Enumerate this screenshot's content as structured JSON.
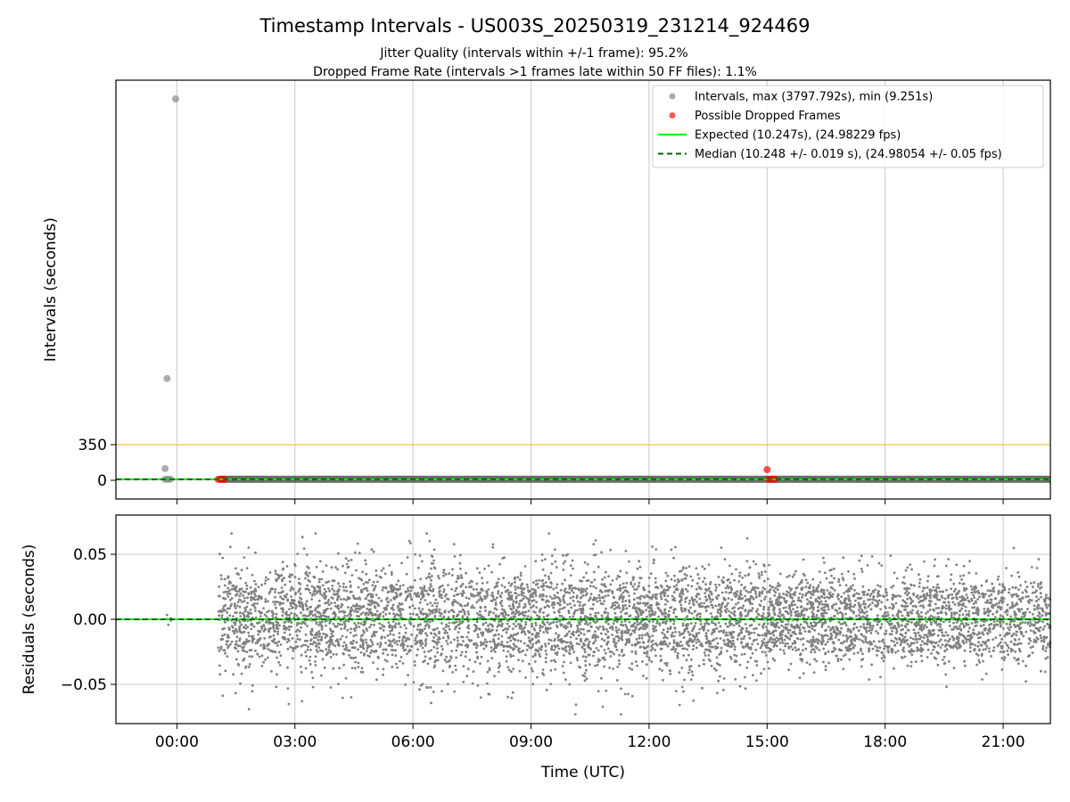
{
  "title": "Timestamp Intervals - US003S_20250319_231214_924469",
  "subtitle_line1": "Jitter Quality (intervals within +/-1 frame): 95.2%",
  "subtitle_line2": "Dropped Frame Rate (intervals >1 frames late within 50 FF files): 1.1%",
  "colors": {
    "intervals": "#808080",
    "dropped": "#ff0000",
    "expected": "#00ee00",
    "median": "#006400",
    "threshold": "#f5c542",
    "grid": "#c8c8c8"
  },
  "chart_data": [
    {
      "type": "scatter",
      "ylabel": "Intervals (seconds)",
      "y_tick_labels": [
        "0",
        "350"
      ],
      "y_ticks": [
        0,
        350
      ],
      "ylim": [
        -170,
        3880
      ],
      "grid": "vertical",
      "legend_placement": "top-right",
      "legend": [
        {
          "label": "Intervals, max (3797.792s), min (9.251s)",
          "kind": "marker",
          "color": "#808080"
        },
        {
          "label": "Possible Dropped Frames",
          "kind": "marker",
          "color": "#ff0000"
        },
        {
          "label": "Expected (10.247s), (24.98229 fps)",
          "kind": "line",
          "color": "#00ee00"
        },
        {
          "label": "Median (10.248 +/- 0.019 s), (24.98054 +/- 0.05 fps)",
          "kind": "dashed-line",
          "color": "#006400"
        }
      ],
      "threshold_y": 350,
      "expected_y": 10.247,
      "median_y": 10.248,
      "interval_outliers": [
        {
          "x": "23:58",
          "y": 3797.792
        },
        {
          "x": "23:45",
          "y": 1010
        },
        {
          "x": "23:42",
          "y": 115
        },
        {
          "x": "23:42",
          "y": 10.2
        },
        {
          "x": "23:46",
          "y": 10.2
        },
        {
          "x": "23:50",
          "y": 10.2
        }
      ],
      "interval_band": {
        "x_start": "01:05",
        "x_end": "22:12",
        "y": 10.25
      },
      "dropped_frames": [
        {
          "x": "01:03",
          "y": 10.3
        },
        {
          "x": "01:06",
          "y": 10.3
        },
        {
          "x": "01:09",
          "y": 10.3
        },
        {
          "x": "01:12",
          "y": 10.3
        },
        {
          "x": "15:00",
          "y": 105
        },
        {
          "x": "15:02",
          "y": 10.3
        },
        {
          "x": "15:05",
          "y": 10.3
        },
        {
          "x": "15:09",
          "y": 10.3
        },
        {
          "x": "15:12",
          "y": 10.3
        }
      ]
    },
    {
      "type": "scatter",
      "xlabel": "Time (UTC)",
      "ylabel": "Residuals (seconds)",
      "x_tick_labels": [
        "00:00",
        "03:00",
        "06:00",
        "09:00",
        "12:00",
        "15:00",
        "18:00",
        "21:00"
      ],
      "x_range": [
        "22:27 (previous day)",
        "22:12"
      ],
      "y_tick_labels": [
        "0.05",
        "0.00",
        "−0.05"
      ],
      "y_ticks": [
        0.05,
        0.0,
        -0.05
      ],
      "ylim": [
        -0.081,
        0.081
      ],
      "grid": "both",
      "expected_y": 0.0,
      "median_y": 0.0,
      "residual_spread": [
        {
          "x_start": "23:42",
          "x_end": "23:52",
          "sd": 0.003
        },
        {
          "x_start": "01:03",
          "x_end": "15:00",
          "sd": 0.022
        },
        {
          "x_start": "15:00",
          "x_end": "22:12",
          "sd": 0.017
        }
      ],
      "residual_range": {
        "max": 0.066,
        "min": -0.073
      }
    }
  ]
}
